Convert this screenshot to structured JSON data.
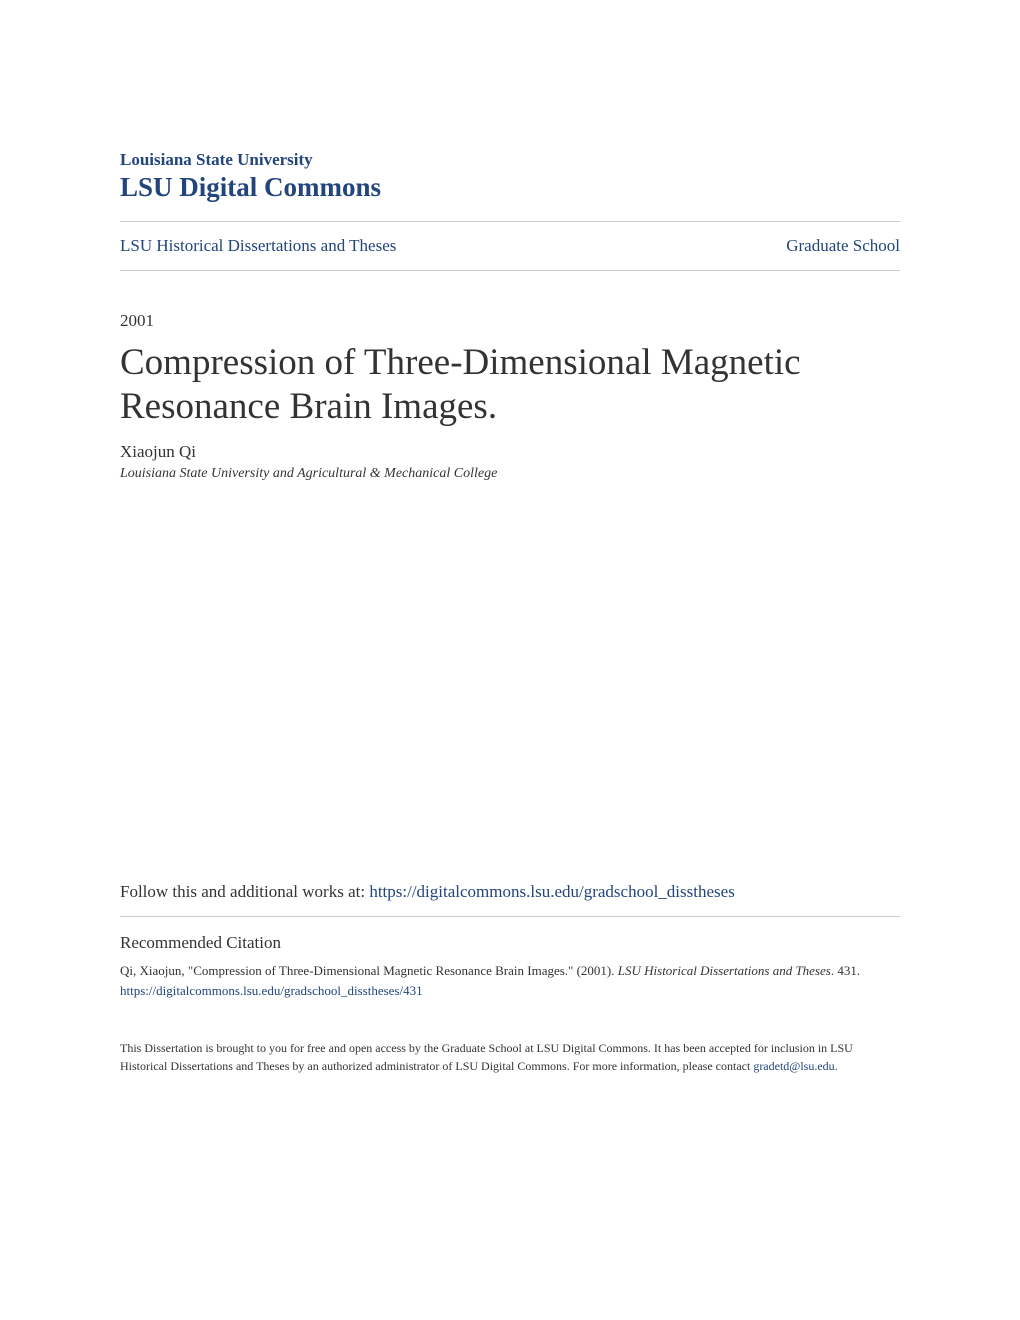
{
  "header": {
    "university": "Louisiana State University",
    "repository": "LSU Digital Commons"
  },
  "nav": {
    "left": "LSU Historical Dissertations and Theses",
    "right": "Graduate School"
  },
  "document": {
    "year": "2001",
    "title": "Compression of Three-Dimensional Magnetic Resonance Brain Images.",
    "author": "Xiaojun Qi",
    "affiliation": "Louisiana State University and Agricultural & Mechanical College"
  },
  "follow": {
    "prefix": "Follow this and additional works at: ",
    "url": "https://digitalcommons.lsu.edu/gradschool_disstheses"
  },
  "citation": {
    "heading": "Recommended Citation",
    "text_prefix": "Qi, Xiaojun, \"Compression of Three-Dimensional Magnetic Resonance Brain Images.\" (2001). ",
    "text_italic": "LSU Historical Dissertations and Theses",
    "text_suffix": ". 431.",
    "url": "https://digitalcommons.lsu.edu/gradschool_disstheses/431"
  },
  "footer": {
    "text": "This Dissertation is brought to you for free and open access by the Graduate School at LSU Digital Commons. It has been accepted for inclusion in LSU Historical Dissertations and Theses by an authorized administrator of LSU Digital Commons. For more information, please contact ",
    "email": "gradetd@lsu.edu",
    "suffix": "."
  },
  "colors": {
    "link": "#22457c",
    "text": "#333333",
    "divider": "#cccccc",
    "background": "#ffffff"
  }
}
